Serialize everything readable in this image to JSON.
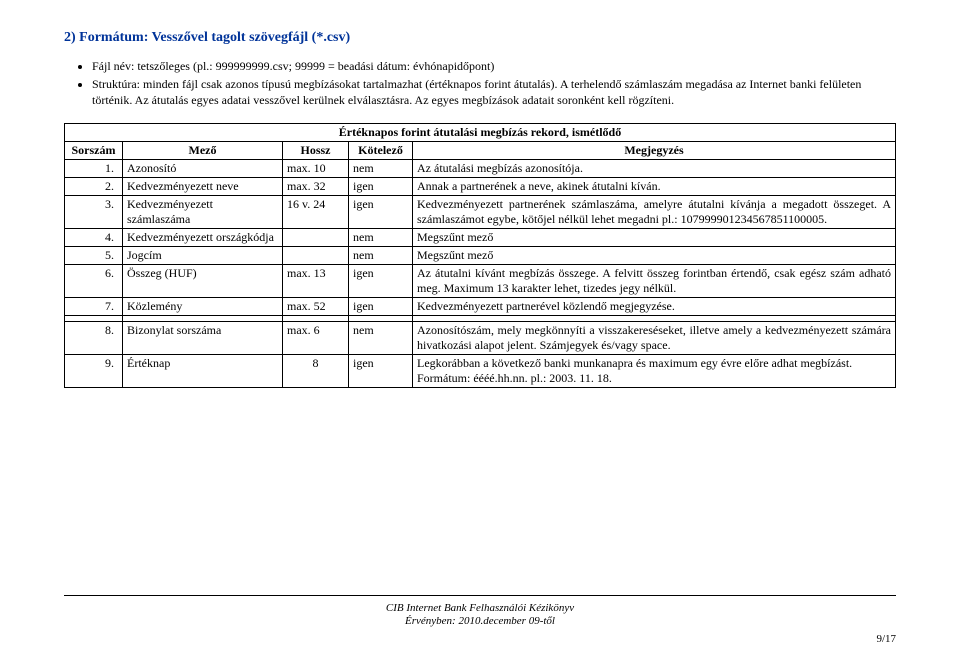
{
  "heading": "2) Formátum: Vesszővel tagolt szövegfájl (*.csv)",
  "bullets": [
    "Fájl név: tetszőleges (pl.: 999999999.csv; 99999 = beadási dátum: évhónapidőpont)",
    "Struktúra: minden fájl csak azonos típusú megbízásokat tartalmazhat (értéknapos forint átutalás). A terhelendő számlaszám megadása az Internet banki felületen történik. Az átutalás egyes adatai vesszővel kerülnek elválasztásra. Az egyes megbízások adatait soronként kell rögzíteni."
  ],
  "table": {
    "title": "Értéknapos forint átutalási megbízás rekord, ismétlődő",
    "headers": {
      "sorszam": "Sorszám",
      "mezo": "Mező",
      "hossz": "Hossz",
      "kotelezo": "Kötelező",
      "megjegyzes": "Megjegyzés"
    },
    "rows": [
      {
        "sor": "1.",
        "mezo": "Azonosító",
        "hossz": "max. 10",
        "kot": "nem",
        "meg": "Az átutalási megbízás azonosítója."
      },
      {
        "sor": "2.",
        "mezo": "Kedvezményezett neve",
        "hossz": "max. 32",
        "kot": "igen",
        "meg": "Annak a partnerének a neve, akinek átutalni kíván."
      },
      {
        "sor": "3.",
        "mezo": "Kedvezményezett számlaszáma",
        "hossz": "16 v. 24",
        "kot": "igen",
        "meg": "Kedvezményezett partnerének számlaszáma, amelyre átutalni kívánja a megadott összeget. A számlaszámot egybe, kötőjel nélkül lehet megadni pl.: 107999901234567851100005."
      },
      {
        "sor": "4.",
        "mezo": "Kedvezményezett országkódja",
        "hossz": "",
        "kot": "nem",
        "meg": "Megszűnt mező"
      },
      {
        "sor": "5.",
        "mezo": "Jogcím",
        "hossz": "",
        "kot": "nem",
        "meg": "Megszűnt mező"
      },
      {
        "sor": "6.",
        "mezo": "Összeg (HUF)",
        "hossz": "max. 13",
        "kot": "igen",
        "meg": "Az átutalni kívánt megbízás összege. A felvitt összeg forintban értendő, csak egész szám adható meg. Maximum 13 karakter lehet, tizedes jegy nélkül."
      },
      {
        "sor": "7.",
        "mezo": "Közlemény",
        "hossz": "max. 52",
        "kot": "igen",
        "meg": "Kedvezményezett partnerével közlendő megjegyzése."
      },
      {
        "sor": "8.",
        "mezo": "Bizonylat sorszáma",
        "hossz": "max. 6",
        "kot": "nem",
        "meg": "Azonosítószám, mely megkönnyíti a visszakereséseket, illetve amely a kedvezményezett számára hivatkozási alapot jelent. Számjegyek és/vagy space."
      },
      {
        "sor": "9.",
        "mezo": "Értéknap",
        "hossz": "8",
        "kot": "igen",
        "meg": "Legkorábban a következő banki munkanapra és maximum egy évre előre adhat megbízást.\nFormátum: éééé.hh.nn.  pl.: 2003. 11. 18."
      }
    ]
  },
  "footer": {
    "line1": "CIB Internet Bank Felhasználói Kézikönyv",
    "line2": "Érvényben: 2010.december 09-től",
    "page": "9/17"
  }
}
